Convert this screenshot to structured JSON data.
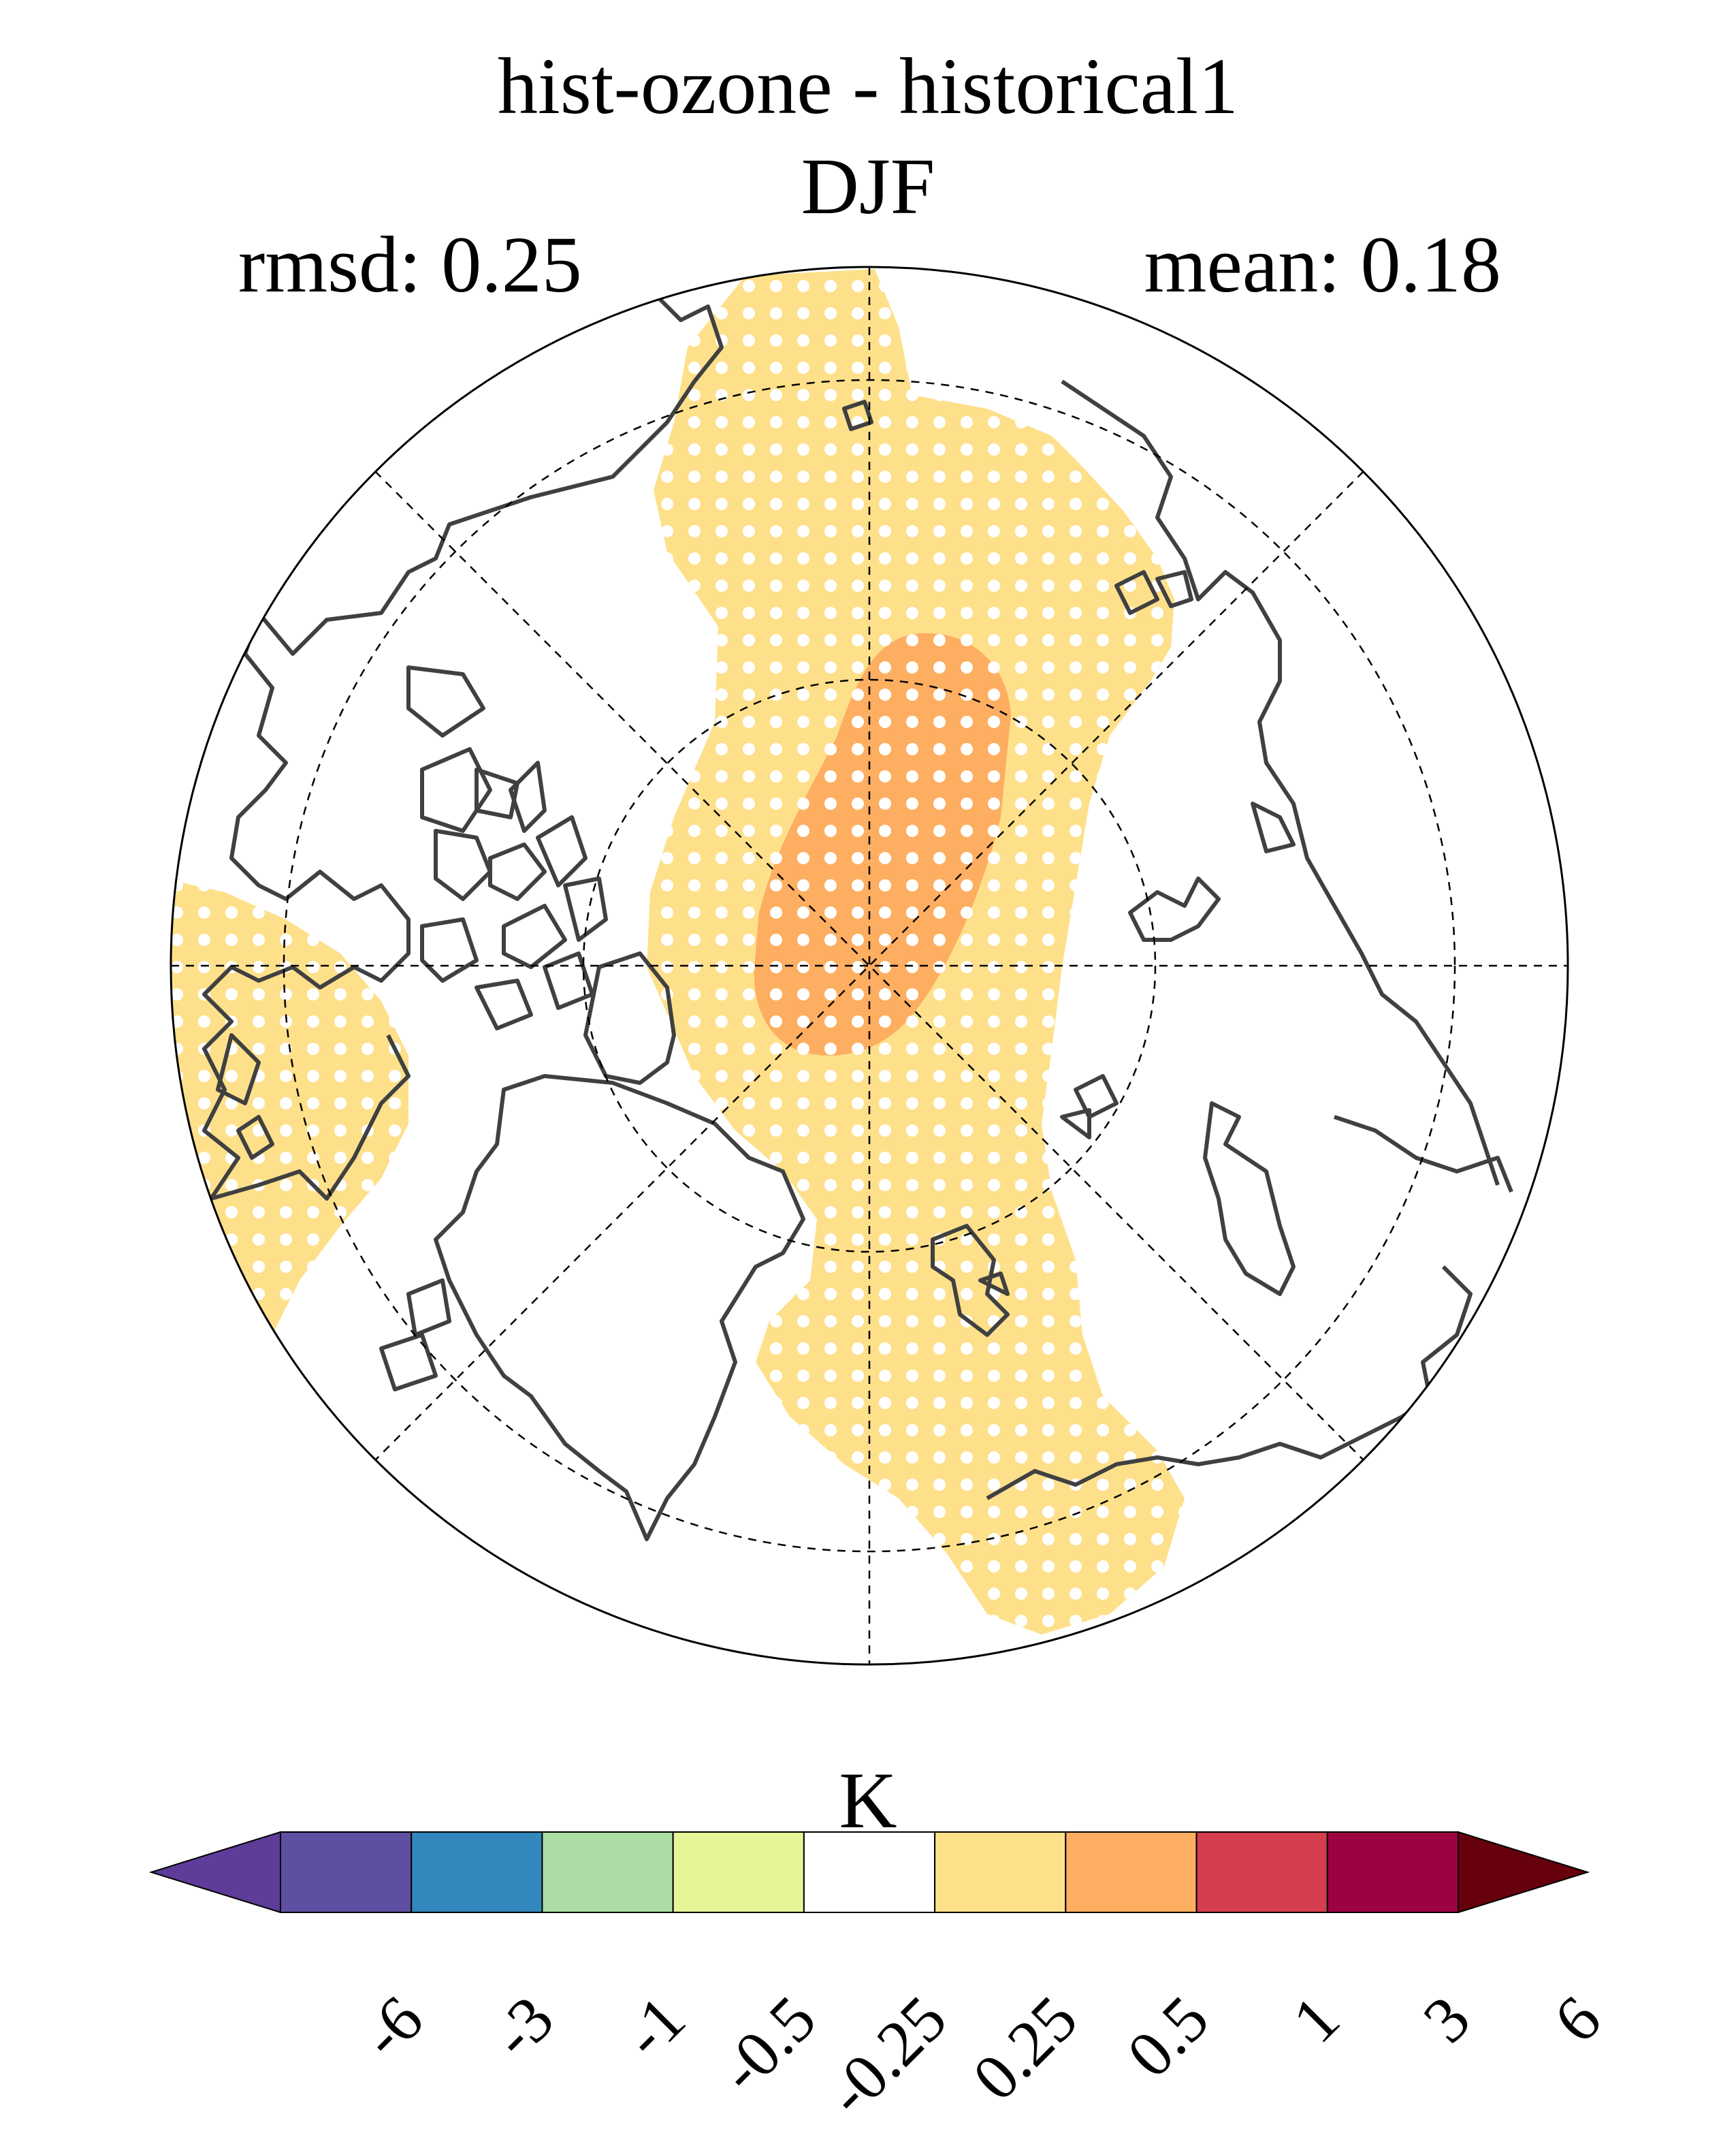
{
  "title": "hist-ozone - historical1",
  "subtitle": "DJF",
  "stats": {
    "rmsd": "rmsd: 0.25",
    "mean": "mean: 0.18"
  },
  "colorbar": {
    "units": "K",
    "colors": [
      "#5e3c99",
      "#5e4fa2",
      "#3288bd",
      "#abdda4",
      "#e6f598",
      "#ffffff",
      "#fee08b",
      "#fdae61",
      "#d53e4f",
      "#9e0142",
      "#67000d"
    ],
    "ticks": [
      "-6",
      "-3",
      "-1",
      "-0.5",
      "-0.25",
      "0.25",
      "0.5",
      "1",
      "3",
      "6"
    ]
  },
  "map": {
    "projection": "north-polar-stereographic",
    "contour_colors": {
      "light": "#fee08b",
      "medium": "#fdae61"
    },
    "coastline_color": "#404040",
    "stippling": "white-dots"
  }
}
